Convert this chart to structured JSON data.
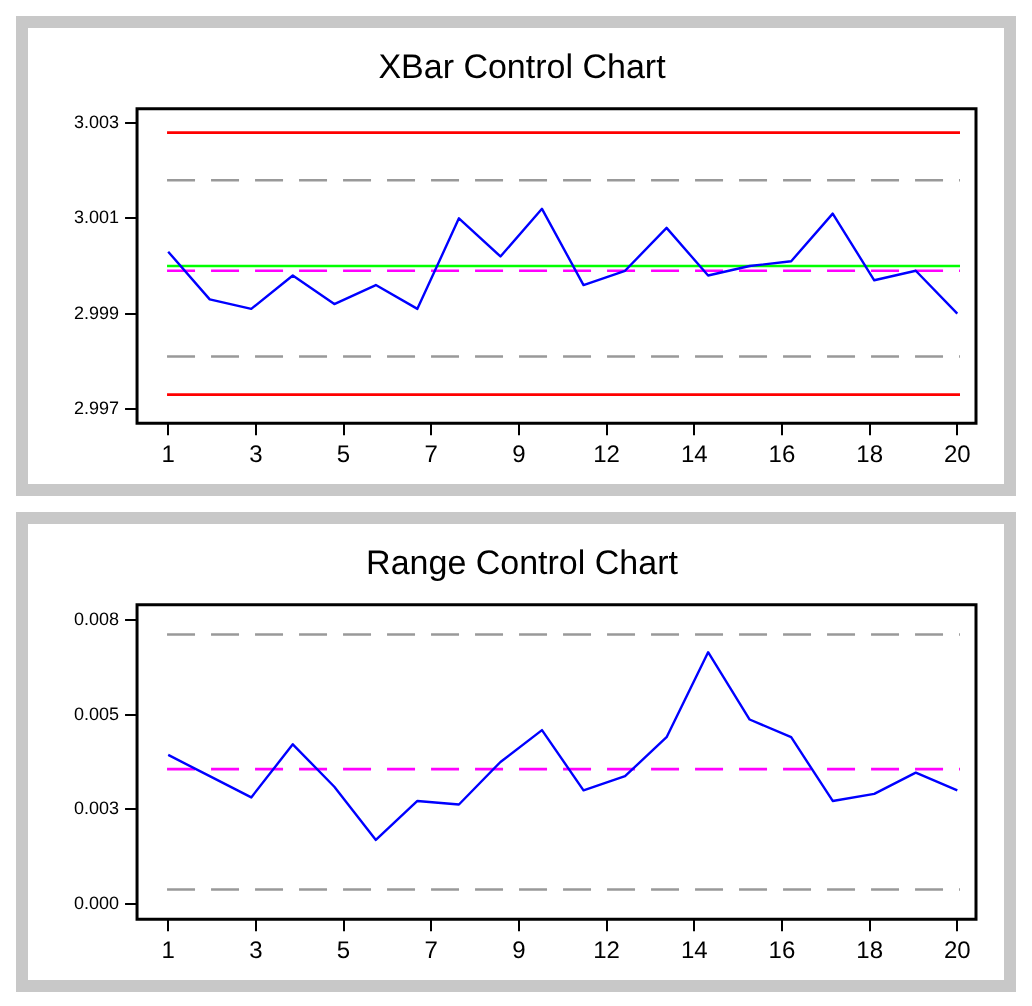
{
  "chart_data": [
    {
      "type": "line",
      "title": "XBar Control Chart",
      "x": [
        1,
        2,
        3,
        4,
        5,
        6,
        7,
        8,
        9,
        10,
        11,
        12,
        13,
        14,
        15,
        16,
        17,
        18,
        19,
        20
      ],
      "xlim": [
        0.25,
        20.45
      ],
      "xticks": [
        {
          "value": 1,
          "label": "1"
        },
        {
          "value": 3.111,
          "label": "3"
        },
        {
          "value": 5.222,
          "label": "5"
        },
        {
          "value": 7.333,
          "label": "7"
        },
        {
          "value": 9.444,
          "label": "9"
        },
        {
          "value": 11.556,
          "label": "12"
        },
        {
          "value": 13.667,
          "label": "14"
        },
        {
          "value": 15.778,
          "label": "16"
        },
        {
          "value": 17.889,
          "label": "18"
        },
        {
          "value": 20,
          "label": "20"
        }
      ],
      "ylim": [
        2.9967,
        3.0033
      ],
      "yticks": [
        2.997,
        2.999,
        3.001,
        3.003
      ],
      "grid": false,
      "marker": "none",
      "series": [
        {
          "color": "#0000ff",
          "values": [
            3.0003,
            2.9993,
            2.9991,
            2.9998,
            2.9992,
            2.9996,
            2.9991,
            3.001,
            3.0002,
            3.0012,
            2.9996,
            2.9999,
            3.0008,
            2.9998,
            3.0,
            3.0001,
            3.0011,
            2.9997,
            2.9999,
            2.999
          ]
        }
      ],
      "ref_lines": [
        {
          "axis": "y",
          "value": 3.0028,
          "color": "#ff0000",
          "line_style": "solid"
        },
        {
          "axis": "y",
          "value": 3.0018,
          "color": "#999999",
          "line_style": "dashed"
        },
        {
          "axis": "y",
          "value": 3.0,
          "color": "#00ff00",
          "line_style": "solid"
        },
        {
          "axis": "y",
          "value": 2.9999,
          "color": "#ff00ff",
          "line_style": "dashed"
        },
        {
          "axis": "y",
          "value": 2.9981,
          "color": "#999999",
          "line_style": "dashed"
        },
        {
          "axis": "y",
          "value": 2.9973,
          "color": "#ff0000",
          "line_style": "solid"
        }
      ]
    },
    {
      "type": "line",
      "title": "Range Control Chart",
      "x": [
        1,
        2,
        3,
        4,
        5,
        6,
        7,
        8,
        9,
        10,
        11,
        12,
        13,
        14,
        15,
        16,
        17,
        18,
        19,
        20
      ],
      "xlim": [
        0.25,
        20.45
      ],
      "xticks": [
        {
          "value": 1,
          "label": "1"
        },
        {
          "value": 3.111,
          "label": "3"
        },
        {
          "value": 5.222,
          "label": "5"
        },
        {
          "value": 7.333,
          "label": "7"
        },
        {
          "value": 9.444,
          "label": "9"
        },
        {
          "value": 11.556,
          "label": "12"
        },
        {
          "value": 13.667,
          "label": "14"
        },
        {
          "value": 15.778,
          "label": "16"
        },
        {
          "value": 17.889,
          "label": "18"
        },
        {
          "value": 20,
          "label": "20"
        }
      ],
      "ylim": [
        -0.00044,
        0.00844
      ],
      "yticks": [
        {
          "value": 0,
          "label": "0.000"
        },
        {
          "value": 0.00267,
          "label": "0.003"
        },
        {
          "value": 0.00533,
          "label": "0.005"
        },
        {
          "value": 0.008,
          "label": "0.008"
        }
      ],
      "grid": false,
      "marker": "none",
      "series": [
        {
          "color": "#0000ff",
          "values": [
            0.0042,
            0.0036,
            0.003,
            0.0045,
            0.0033,
            0.0018,
            0.0029,
            0.0028,
            0.004,
            0.0049,
            0.0032,
            0.0036,
            0.0047,
            0.0071,
            0.0052,
            0.0047,
            0.0029,
            0.0031,
            0.0037,
            0.0032
          ]
        }
      ],
      "ref_lines": [
        {
          "axis": "y",
          "value": 0.0076,
          "color": "#999999",
          "line_style": "dashed"
        },
        {
          "axis": "y",
          "value": 0.0038,
          "color": "#ff00ff",
          "line_style": "dashed"
        },
        {
          "axis": "y",
          "value": 0.0004,
          "color": "#999999",
          "line_style": "dashed"
        }
      ]
    }
  ]
}
